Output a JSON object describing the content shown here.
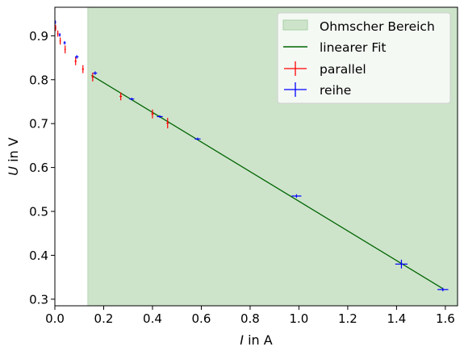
{
  "chart_data": {
    "type": "scatter",
    "title": "",
    "xlabel": {
      "var": "I",
      "rest": " in A"
    },
    "ylabel": {
      "var": "U",
      "rest": " in V"
    },
    "xlim": [
      0.0,
      1.65
    ],
    "ylim": [
      0.285,
      0.965
    ],
    "xticks": [
      "0.0",
      "0.2",
      "0.4",
      "0.6",
      "0.8",
      "1.0",
      "1.2",
      "1.4",
      "1.6"
    ],
    "xtick_values": [
      0.0,
      0.2,
      0.4,
      0.6,
      0.8,
      1.0,
      1.2,
      1.4,
      1.6
    ],
    "yticks": [
      "0.3",
      "0.4",
      "0.5",
      "0.6",
      "0.7",
      "0.8",
      "0.9"
    ],
    "ytick_values": [
      0.3,
      0.4,
      0.5,
      0.6,
      0.7,
      0.8,
      0.9
    ],
    "grid": false,
    "legend_position": "top-right",
    "region": {
      "name": "Ohmscher Bereich",
      "x_start": 0.135,
      "color": "#cde4cb"
    },
    "fit": {
      "name": "linearer Fit",
      "x": [
        0.15,
        1.59
      ],
      "y": [
        0.81,
        0.324
      ],
      "color": "#006400"
    },
    "series": [
      {
        "name": "parallel",
        "color": "#ff0000",
        "points": [
          {
            "x": 0.003,
            "y": 0.918,
            "xerr": 0.003,
            "yerr": 0.007
          },
          {
            "x": 0.012,
            "y": 0.905,
            "xerr": 0.003,
            "yerr": 0.007
          },
          {
            "x": 0.022,
            "y": 0.888,
            "xerr": 0.003,
            "yerr": 0.008
          },
          {
            "x": 0.042,
            "y": 0.869,
            "xerr": 0.003,
            "yerr": 0.009
          },
          {
            "x": 0.085,
            "y": 0.842,
            "xerr": 0.004,
            "yerr": 0.009
          },
          {
            "x": 0.115,
            "y": 0.824,
            "xerr": 0.004,
            "yerr": 0.009
          },
          {
            "x": 0.155,
            "y": 0.806,
            "xerr": 0.004,
            "yerr": 0.01
          },
          {
            "x": 0.27,
            "y": 0.762,
            "xerr": 0.005,
            "yerr": 0.009
          },
          {
            "x": 0.4,
            "y": 0.722,
            "xerr": 0.005,
            "yerr": 0.01
          },
          {
            "x": 0.462,
            "y": 0.701,
            "xerr": 0.005,
            "yerr": 0.012
          }
        ]
      },
      {
        "name": "reihe",
        "color": "#0000ff",
        "points": [
          {
            "x": 0.002,
            "y": 0.931,
            "xerr": 0.003,
            "yerr": 0.004
          },
          {
            "x": 0.02,
            "y": 0.902,
            "xerr": 0.004,
            "yerr": 0.004
          },
          {
            "x": 0.04,
            "y": 0.884,
            "xerr": 0.005,
            "yerr": 0.004
          },
          {
            "x": 0.09,
            "y": 0.852,
            "xerr": 0.007,
            "yerr": 0.004
          },
          {
            "x": 0.165,
            "y": 0.815,
            "xerr": 0.008,
            "yerr": 0.004
          },
          {
            "x": 0.315,
            "y": 0.756,
            "xerr": 0.01,
            "yerr": 0.003
          },
          {
            "x": 0.43,
            "y": 0.716,
            "xerr": 0.012,
            "yerr": 0.003
          },
          {
            "x": 0.585,
            "y": 0.665,
            "xerr": 0.012,
            "yerr": 0.003
          },
          {
            "x": 0.99,
            "y": 0.535,
            "xerr": 0.02,
            "yerr": 0.004
          },
          {
            "x": 1.42,
            "y": 0.38,
            "xerr": 0.025,
            "yerr": 0.01
          },
          {
            "x": 1.59,
            "y": 0.322,
            "xerr": 0.022,
            "yerr": 0.004
          }
        ]
      }
    ]
  }
}
